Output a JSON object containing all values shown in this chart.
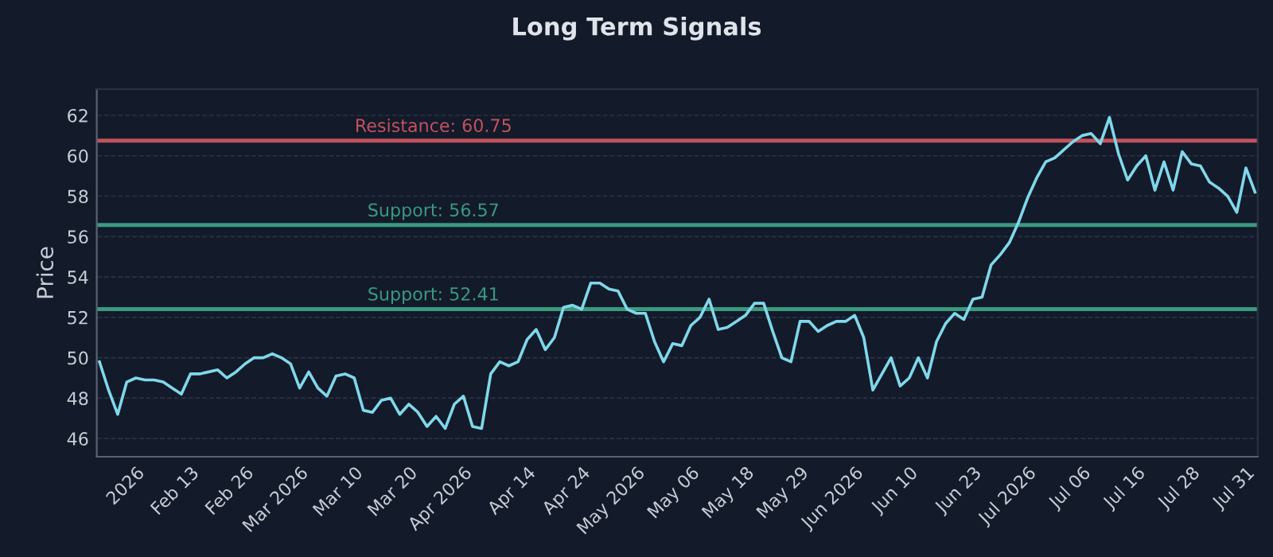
{
  "chart_data": {
    "type": "line",
    "title": "Long Term Signals",
    "ylabel": "Price",
    "categories": [
      null,
      null,
      null,
      null,
      "2026",
      null,
      null,
      null,
      null,
      null,
      "Feb 13",
      null,
      null,
      null,
      null,
      null,
      "Feb 26",
      null,
      null,
      null,
      null,
      null,
      "Mar 2026",
      null,
      null,
      null,
      null,
      null,
      "Mar 10",
      null,
      null,
      null,
      null,
      null,
      "Mar 20",
      null,
      null,
      null,
      null,
      null,
      "Apr 2026",
      null,
      null,
      null,
      null,
      null,
      null,
      "Apr 14",
      null,
      null,
      null,
      null,
      null,
      "Apr 24",
      null,
      null,
      null,
      null,
      null,
      "May 2026",
      null,
      null,
      null,
      null,
      null,
      "May 06",
      null,
      null,
      null,
      null,
      null,
      "May 18",
      null,
      null,
      null,
      null,
      null,
      "May 29",
      null,
      null,
      null,
      null,
      null,
      "Jun 2026",
      null,
      null,
      null,
      null,
      null,
      "Jun 10",
      null,
      null,
      null,
      null,
      null,
      null,
      "Jun 23",
      null,
      null,
      null,
      null,
      null,
      "Jul 2026",
      null,
      null,
      null,
      null,
      null,
      "Jul 06",
      null,
      null,
      null,
      null,
      null,
      "Jul 16",
      null,
      null,
      null,
      null,
      null,
      "Jul 28",
      null,
      null,
      null,
      null,
      null,
      "Jul 31",
      null
    ],
    "series": [
      {
        "color": "#7fd8ea",
        "values": [
          49.8,
          48.4,
          47.2,
          48.8,
          49.0,
          48.9,
          48.9,
          48.8,
          48.5,
          48.2,
          49.2,
          49.2,
          49.3,
          49.4,
          49.0,
          49.3,
          49.7,
          50.0,
          50.0,
          50.2,
          50.0,
          49.7,
          48.5,
          49.3,
          48.5,
          48.1,
          49.1,
          49.2,
          49.0,
          47.4,
          47.3,
          47.9,
          48.0,
          47.2,
          47.7,
          47.3,
          46.6,
          47.1,
          46.5,
          47.7,
          48.1,
          46.6,
          46.5,
          49.2,
          49.8,
          49.6,
          49.8,
          50.9,
          51.4,
          50.4,
          51.0,
          52.5,
          52.6,
          52.4,
          53.7,
          53.7,
          53.4,
          53.3,
          52.4,
          52.2,
          52.2,
          50.8,
          49.8,
          50.7,
          50.6,
          51.6,
          52.0,
          52.9,
          51.4,
          51.5,
          51.8,
          52.1,
          52.7,
          52.7,
          51.3,
          50.0,
          49.8,
          51.8,
          51.8,
          51.3,
          51.6,
          51.8,
          51.8,
          52.1,
          51.0,
          48.4,
          49.2,
          50.0,
          48.6,
          49.0,
          50.0,
          49.0,
          50.8,
          51.7,
          52.2,
          51.9,
          52.9,
          53.0,
          54.6,
          55.1,
          55.7,
          56.7,
          57.9,
          58.9,
          59.7,
          59.9,
          60.3,
          60.7,
          61.0,
          61.1,
          60.6,
          61.9,
          60.1,
          58.8,
          59.5,
          60.0,
          58.3,
          59.7,
          58.3,
          60.2,
          59.6,
          59.5,
          58.7,
          58.4,
          58.0,
          57.2,
          59.4,
          58.2
        ]
      }
    ],
    "ylim": [
      45.1,
      63.3
    ],
    "yticks": [
      46,
      48,
      50,
      52,
      54,
      56,
      58,
      60,
      62
    ],
    "grid": "y",
    "line_style": "solid",
    "marker": "none",
    "ref_lines": [
      {
        "axis": "y",
        "value": 60.75,
        "label": "Resistance: 60.75",
        "color": "#c0525e"
      },
      {
        "axis": "y",
        "value": 56.57,
        "label": "Support: 56.57",
        "color": "#3a9a80"
      },
      {
        "axis": "y",
        "value": 52.41,
        "label": "Support: 52.41",
        "color": "#3a9a80"
      }
    ]
  }
}
